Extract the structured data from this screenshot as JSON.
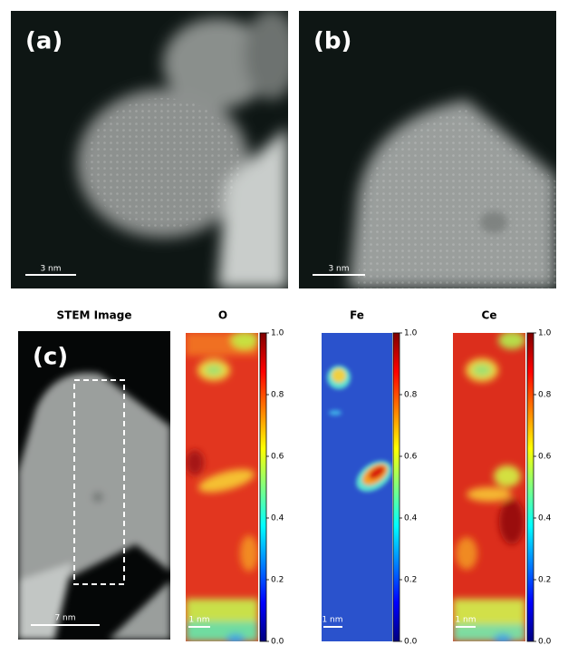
{
  "panels": [
    {
      "label": "(a)",
      "scale_bar": "3 nm"
    },
    {
      "label": "(b)",
      "scale_bar": "3 nm"
    }
  ],
  "panel_c": {
    "label": "(c)",
    "stem": {
      "title": "STEM Image",
      "scale_bar": "7 nm"
    },
    "maps": [
      {
        "title": "O",
        "scale_bar": "1 nm"
      },
      {
        "title": "Fe",
        "scale_bar": "1 nm"
      },
      {
        "title": "Ce",
        "scale_bar": "1 nm"
      }
    ],
    "colorbar": {
      "ticks": [
        {
          "value": 0,
          "label": "0.0"
        },
        {
          "value": 0.2,
          "label": "0.2"
        },
        {
          "value": 0.4,
          "label": "0.4"
        },
        {
          "value": 0.6,
          "label": "0.6"
        },
        {
          "value": 0.8,
          "label": "0.8"
        },
        {
          "value": 1,
          "label": "1.0"
        }
      ]
    }
  }
}
